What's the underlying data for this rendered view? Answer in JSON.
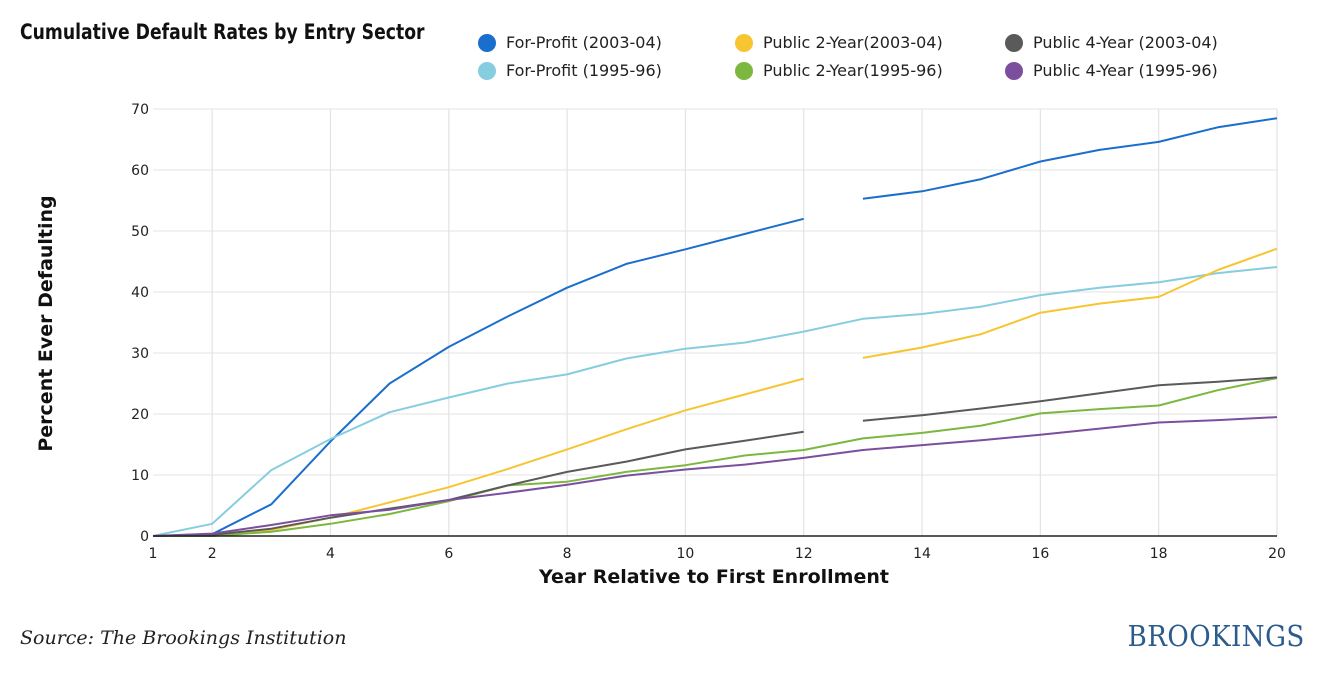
{
  "chart_data": {
    "type": "line",
    "title": "Cumulative Default Rates by Entry Sector",
    "xlabel": "Year Relative to First Enrollment",
    "ylabel": "Percent Ever Defaulting",
    "xlim": [
      1,
      20
    ],
    "ylim": [
      0,
      70
    ],
    "x_ticks": [
      1,
      2,
      4,
      6,
      8,
      10,
      12,
      14,
      16,
      18,
      20
    ],
    "y_ticks": [
      0,
      10,
      20,
      30,
      40,
      50,
      60,
      70
    ],
    "grid": true,
    "legend_position": "top",
    "series": [
      {
        "name": "For-Profit (2003-04)",
        "color": "#1b6fcc",
        "points": [
          [
            1,
            0
          ],
          [
            2,
            0.3
          ],
          [
            3,
            5.2
          ],
          [
            4,
            15.5
          ],
          [
            5,
            25
          ],
          [
            6,
            31
          ],
          [
            7,
            36
          ],
          [
            8,
            40.7
          ],
          [
            9,
            44.6
          ],
          [
            10,
            47
          ],
          [
            11,
            49.5
          ],
          [
            12,
            52
          ],
          [
            13,
            null
          ],
          [
            13,
            55.3
          ],
          [
            14,
            56.5
          ],
          [
            15,
            58.5
          ],
          [
            16,
            61.4
          ],
          [
            17,
            63.3
          ],
          [
            18,
            64.6
          ],
          [
            19,
            67
          ],
          [
            20,
            68.5
          ]
        ]
      },
      {
        "name": "For-Profit (1995-96)",
        "color": "#87cde0",
        "points": [
          [
            1,
            0
          ],
          [
            2,
            2
          ],
          [
            3,
            10.8
          ],
          [
            4,
            15.9
          ],
          [
            5,
            20.3
          ],
          [
            6,
            22.7
          ],
          [
            7,
            25
          ],
          [
            8,
            26.5
          ],
          [
            9,
            29.1
          ],
          [
            10,
            30.7
          ],
          [
            11,
            31.7
          ],
          [
            12,
            33.5
          ],
          [
            13,
            35.6
          ],
          [
            14,
            36.4
          ],
          [
            15,
            37.6
          ],
          [
            16,
            39.5
          ],
          [
            17,
            40.7
          ],
          [
            18,
            41.6
          ],
          [
            19,
            43.1
          ],
          [
            20,
            44.1
          ]
        ]
      },
      {
        "name": "Public 2-Year(2003-04)",
        "color": "#f7c531",
        "points": [
          [
            1,
            0
          ],
          [
            2,
            0
          ],
          [
            3,
            1
          ],
          [
            4,
            3
          ],
          [
            5,
            5.5
          ],
          [
            6,
            8
          ],
          [
            7,
            11
          ],
          [
            8,
            14.2
          ],
          [
            9,
            17.5
          ],
          [
            10,
            20.6
          ],
          [
            11,
            23.2
          ],
          [
            12,
            25.8
          ],
          [
            13,
            null
          ],
          [
            13,
            29.2
          ],
          [
            14,
            30.9
          ],
          [
            15,
            33.1
          ],
          [
            16,
            36.6
          ],
          [
            17,
            38.1
          ],
          [
            18,
            39.2
          ],
          [
            19,
            43.6
          ],
          [
            20,
            47.1
          ]
        ]
      },
      {
        "name": "Public 2-Year(1995-96)",
        "color": "#7cb73f",
        "points": [
          [
            1,
            0
          ],
          [
            2,
            0
          ],
          [
            3,
            0.7
          ],
          [
            4,
            2
          ],
          [
            5,
            3.6
          ],
          [
            6,
            5.7
          ],
          [
            7,
            8.3
          ],
          [
            8,
            8.9
          ],
          [
            9,
            10.5
          ],
          [
            10,
            11.6
          ],
          [
            11,
            13.2
          ],
          [
            12,
            14.1
          ],
          [
            13,
            16
          ],
          [
            14,
            16.9
          ],
          [
            15,
            18.1
          ],
          [
            16,
            20.1
          ],
          [
            17,
            20.8
          ],
          [
            18,
            21.4
          ],
          [
            19,
            23.9
          ],
          [
            20,
            25.9
          ]
        ]
      },
      {
        "name": "Public 4-Year (2003-04)",
        "color": "#5a5a5a",
        "points": [
          [
            1,
            0
          ],
          [
            2,
            0.2
          ],
          [
            3,
            1.2
          ],
          [
            4,
            3
          ],
          [
            5,
            4.5
          ],
          [
            6,
            5.9
          ],
          [
            7,
            8.3
          ],
          [
            8,
            10.5
          ],
          [
            9,
            12.2
          ],
          [
            10,
            14.2
          ],
          [
            11,
            15.6
          ],
          [
            12,
            17.1
          ],
          [
            13,
            null
          ],
          [
            13,
            18.9
          ],
          [
            14,
            19.8
          ],
          [
            15,
            20.9
          ],
          [
            16,
            22.1
          ],
          [
            17,
            23.4
          ],
          [
            18,
            24.7
          ],
          [
            19,
            25.3
          ],
          [
            20,
            26
          ]
        ]
      },
      {
        "name": "Public 4-Year (1995-96)",
        "color": "#7b4f9d",
        "points": [
          [
            1,
            0
          ],
          [
            2,
            0.4
          ],
          [
            3,
            1.8
          ],
          [
            4,
            3.4
          ],
          [
            5,
            4.3
          ],
          [
            6,
            5.9
          ],
          [
            7,
            7.1
          ],
          [
            8,
            8.4
          ],
          [
            9,
            9.9
          ],
          [
            10,
            10.9
          ],
          [
            11,
            11.7
          ],
          [
            12,
            12.8
          ],
          [
            13,
            14.1
          ],
          [
            14,
            14.9
          ],
          [
            15,
            15.7
          ],
          [
            16,
            16.6
          ],
          [
            17,
            17.6
          ],
          [
            18,
            18.6
          ],
          [
            19,
            19
          ],
          [
            20,
            19.5
          ]
        ]
      }
    ]
  },
  "source": "Source: The Brookings Institution",
  "logo": "BROOKINGS"
}
